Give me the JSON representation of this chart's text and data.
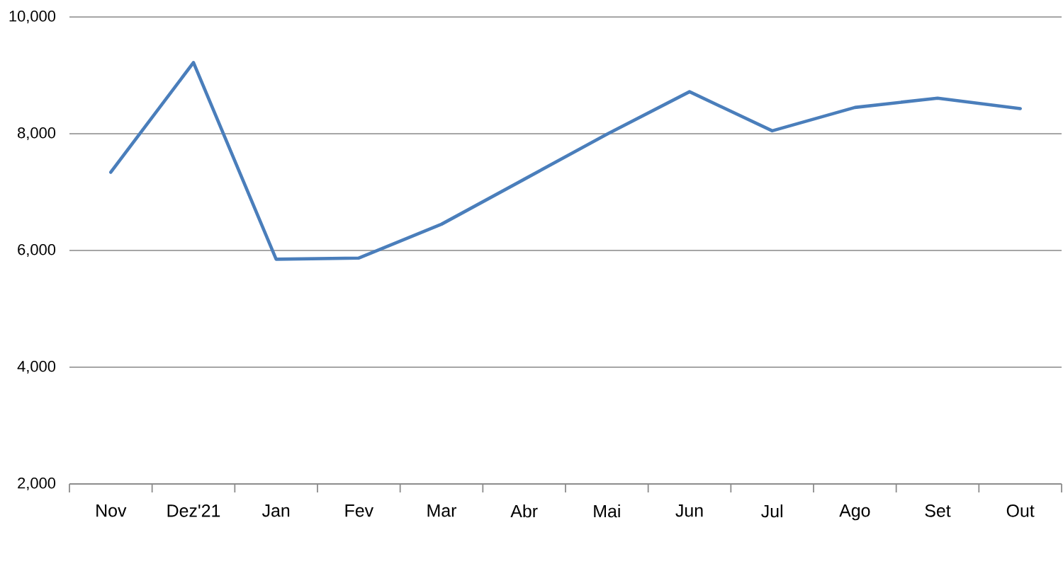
{
  "chart_data": {
    "type": "line",
    "categories": [
      "Nov",
      "Dez'21",
      "Jan",
      "Fev",
      "Mar",
      "Abr",
      "Mai",
      "Jun",
      "Jul",
      "Ago",
      "Set",
      "Out"
    ],
    "series": [
      {
        "color": "#4a7ebb",
        "values": [
          7340,
          9220,
          5850,
          5870,
          6450,
          7220,
          7990,
          8720,
          8050,
          8450,
          8610,
          8430
        ]
      }
    ],
    "ylim": [
      2000,
      10000
    ],
    "yticks": [
      {
        "value": 2000,
        "label": "2,000"
      },
      {
        "value": 4000,
        "label": "4,000"
      },
      {
        "value": 6000,
        "label": "6,000"
      },
      {
        "value": 8000,
        "label": "8,000"
      },
      {
        "value": 10000,
        "label": "10,000"
      }
    ],
    "grid": "y",
    "marker": "none",
    "line_style": "solid"
  }
}
